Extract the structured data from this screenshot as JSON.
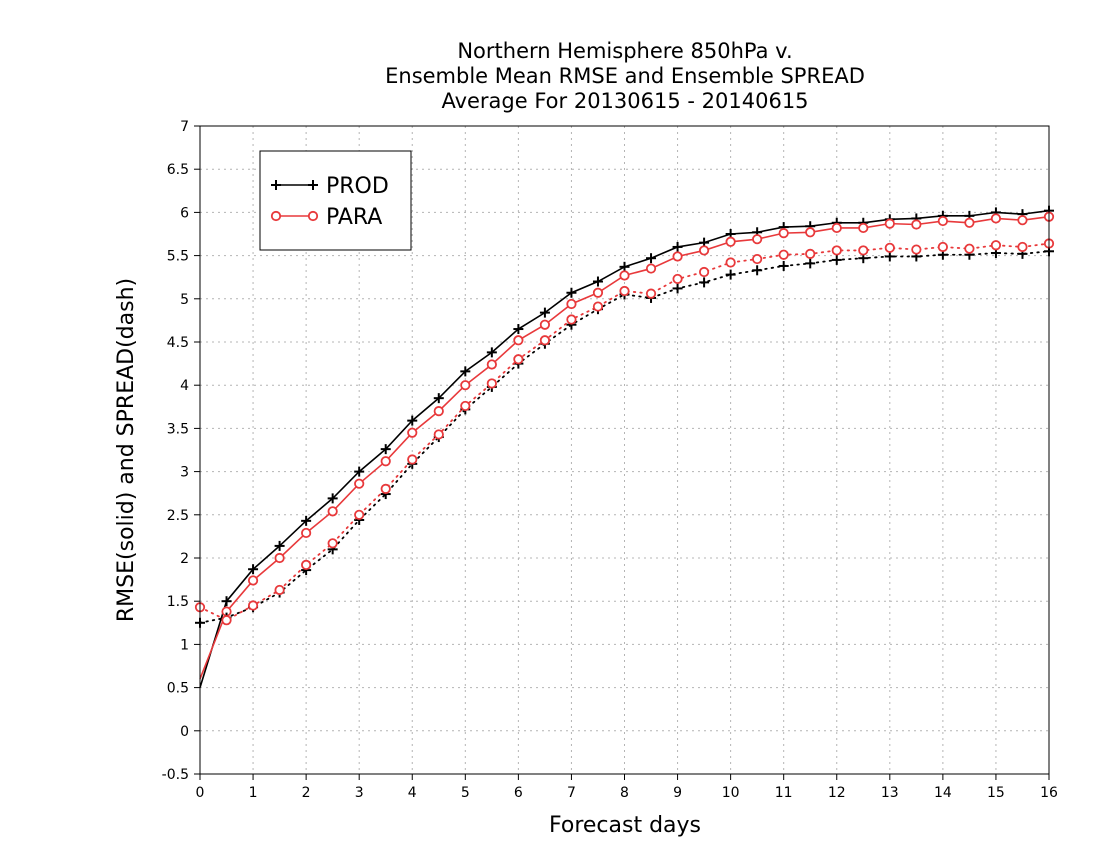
{
  "chart_data": {
    "type": "line",
    "title_lines": [
      "Northern Hemisphere 850hPa v.",
      "Ensemble Mean RMSE and Ensemble SPREAD",
      "Average For 20130615 - 20140615"
    ],
    "xlabel": "Forecast days",
    "ylabel": "RMSE(solid) and SPREAD(dash)",
    "xlim": [
      0,
      16
    ],
    "ylim": [
      -0.5,
      7
    ],
    "x_ticks": [
      0,
      1,
      2,
      3,
      4,
      5,
      6,
      7,
      8,
      9,
      10,
      11,
      12,
      13,
      14,
      15,
      16
    ],
    "y_ticks": [
      -0.5,
      0,
      0.5,
      1,
      1.5,
      2,
      2.5,
      3,
      3.5,
      4,
      4.5,
      5,
      5.5,
      6,
      6.5,
      7
    ],
    "y_tick_labels": [
      "-0.5",
      "0",
      "0.5",
      "1",
      "1.5",
      "2",
      "2.5",
      "3",
      "3.5",
      "4",
      "4.5",
      "5",
      "5.5",
      "6",
      "6.5",
      "7"
    ],
    "grid": true,
    "legend_position": "top-left",
    "x": [
      0,
      0.5,
      1,
      1.5,
      2,
      2.5,
      3,
      3.5,
      4,
      4.5,
      5,
      5.5,
      6,
      6.5,
      7,
      7.5,
      8,
      8.5,
      9,
      9.5,
      10,
      10.5,
      11,
      11.5,
      12,
      12.5,
      13,
      13.5,
      14,
      14.5,
      15,
      15.5,
      16
    ],
    "series": [
      {
        "name": "PROD",
        "kind": "rmse",
        "style": "solid",
        "marker": "plus",
        "color": "#000000",
        "values": [
          0.5,
          1.5,
          1.87,
          2.14,
          2.43,
          2.69,
          3.0,
          3.26,
          3.59,
          3.85,
          4.16,
          4.38,
          4.65,
          4.84,
          5.07,
          5.2,
          5.37,
          5.47,
          5.6,
          5.65,
          5.75,
          5.77,
          5.83,
          5.84,
          5.88,
          5.88,
          5.92,
          5.93,
          5.96,
          5.96,
          6.0,
          5.98,
          6.02
        ]
      },
      {
        "name": "PARA",
        "kind": "rmse",
        "style": "solid",
        "marker": "circle",
        "color": "#e8393b",
        "values": [
          0.6,
          1.38,
          1.74,
          2.0,
          2.29,
          2.54,
          2.86,
          3.12,
          3.45,
          3.7,
          4.0,
          4.24,
          4.52,
          4.7,
          4.94,
          5.07,
          5.27,
          5.35,
          5.49,
          5.56,
          5.66,
          5.69,
          5.76,
          5.77,
          5.82,
          5.82,
          5.87,
          5.86,
          5.9,
          5.88,
          5.93,
          5.91,
          5.95
        ]
      },
      {
        "name": "PROD",
        "kind": "spread",
        "style": "dotted",
        "marker": "plus",
        "color": "#000000",
        "values": [
          1.25,
          1.31,
          1.43,
          1.6,
          1.86,
          2.1,
          2.44,
          2.74,
          3.09,
          3.4,
          3.72,
          3.98,
          4.25,
          4.48,
          4.7,
          4.88,
          5.05,
          5.01,
          5.12,
          5.19,
          5.28,
          5.33,
          5.38,
          5.41,
          5.45,
          5.47,
          5.49,
          5.49,
          5.51,
          5.51,
          5.53,
          5.52,
          5.55
        ]
      },
      {
        "name": "PARA",
        "kind": "spread",
        "style": "dotted",
        "marker": "circle",
        "color": "#e8393b",
        "values": [
          1.43,
          1.28,
          1.45,
          1.63,
          1.92,
          2.17,
          2.5,
          2.8,
          3.14,
          3.43,
          3.76,
          4.02,
          4.3,
          4.52,
          4.76,
          4.91,
          5.09,
          5.06,
          5.23,
          5.31,
          5.42,
          5.46,
          5.51,
          5.52,
          5.56,
          5.56,
          5.59,
          5.57,
          5.6,
          5.58,
          5.62,
          5.6,
          5.64
        ]
      }
    ],
    "legend": [
      {
        "label": "PROD",
        "marker": "plus",
        "color": "#000000"
      },
      {
        "label": "PARA",
        "marker": "circle",
        "color": "#e8393b"
      }
    ]
  }
}
